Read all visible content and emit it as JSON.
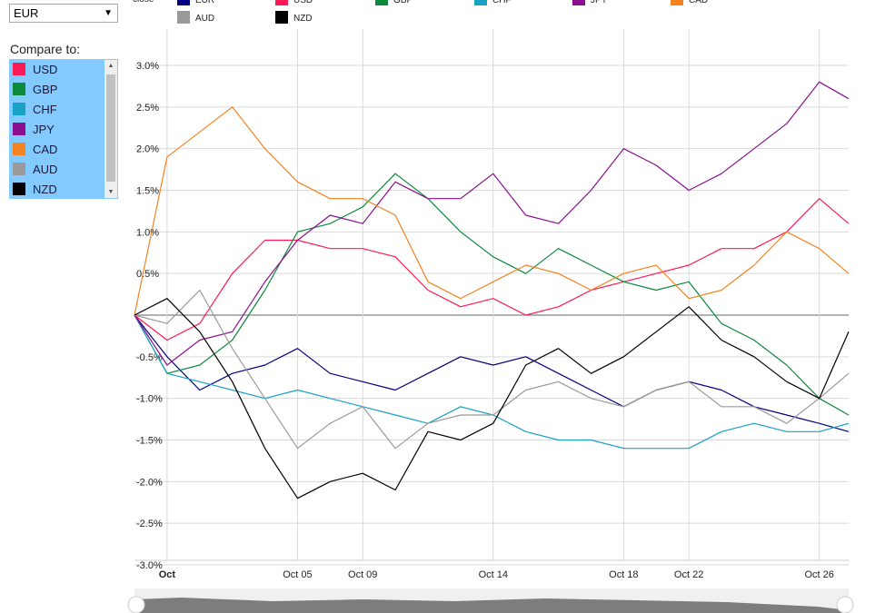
{
  "controls": {
    "base_currency": "EUR",
    "compare_label": "Compare to:",
    "compare_items": [
      {
        "label": "USD",
        "color": "#ff1a55"
      },
      {
        "label": "GBP",
        "color": "#0b8a3c"
      },
      {
        "label": "CHF",
        "color": "#17a2c4"
      },
      {
        "label": "JPY",
        "color": "#8b0f8f"
      },
      {
        "label": "CAD",
        "color": "#f58220"
      },
      {
        "label": "AUD",
        "color": "#999999"
      },
      {
        "label": "NZD",
        "color": "#000000"
      }
    ]
  },
  "chart_data": {
    "type": "line",
    "legend_label": "close",
    "legend": [
      {
        "name": "EUR",
        "color": "#000080"
      },
      {
        "name": "USD",
        "color": "#ff1a55"
      },
      {
        "name": "GBP",
        "color": "#0b8a3c"
      },
      {
        "name": "CHF",
        "color": "#17a2c4"
      },
      {
        "name": "JPY",
        "color": "#8b0f8f"
      },
      {
        "name": "CAD",
        "color": "#f58220"
      },
      {
        "name": "AUD",
        "color": "#999999"
      },
      {
        "name": "NZD",
        "color": "#000000"
      }
    ],
    "y_ticks": [
      "3.0%",
      "2.5%",
      "2.0%",
      "1.5%",
      "1.0%",
      "0.5%",
      "-0.5%",
      "-1.0%",
      "-1.5%",
      "-2.0%",
      "-2.5%",
      "-3.0%"
    ],
    "y_tick_values": [
      3.0,
      2.5,
      2.0,
      1.5,
      1.0,
      0.5,
      -0.5,
      -1.0,
      -1.5,
      -2.0,
      -2.5,
      -3.0
    ],
    "ylim": [
      -3.0,
      3.0
    ],
    "x_ticks": [
      "Oct",
      "Oct 05",
      "Oct 09",
      "Oct 14",
      "Oct 18",
      "Oct 22",
      "Oct 26"
    ],
    "x_tick_days": [
      1,
      5,
      7,
      11,
      15,
      17,
      21
    ],
    "xlim": [
      0,
      21.9
    ],
    "grid": true,
    "navigator_ticks": [
      "Oct",
      "Oct 05",
      "Oct 09",
      "Oct 14",
      "Oct 18",
      "Oct 22",
      "Oct 26"
    ],
    "series": [
      {
        "name": "EUR",
        "color": "#000080",
        "x": [
          0,
          1,
          2,
          3,
          4,
          5,
          6,
          7,
          8,
          9,
          10,
          11,
          12,
          13,
          14,
          15,
          16,
          17,
          18,
          19,
          20,
          21,
          21.9
        ],
        "y": [
          0.0,
          -0.5,
          -0.9,
          -0.7,
          -0.6,
          -0.4,
          -0.7,
          -0.8,
          -0.9,
          -0.7,
          -0.5,
          -0.6,
          -0.5,
          -0.7,
          -0.9,
          -1.1,
          -0.9,
          -0.8,
          -0.9,
          -1.1,
          -1.2,
          -1.3,
          -1.4
        ]
      },
      {
        "name": "USD",
        "color": "#ff1a55",
        "x": [
          0,
          1,
          2,
          3,
          4,
          5,
          6,
          7,
          8,
          9,
          10,
          11,
          12,
          13,
          14,
          15,
          16,
          17,
          18,
          19,
          20,
          21,
          21.9
        ],
        "y": [
          0.0,
          -0.3,
          -0.1,
          0.5,
          0.9,
          0.9,
          0.8,
          0.8,
          0.7,
          0.3,
          0.1,
          0.2,
          0.0,
          0.1,
          0.3,
          0.4,
          0.5,
          0.6,
          0.8,
          0.8,
          1.0,
          1.4,
          1.1
        ]
      },
      {
        "name": "GBP",
        "color": "#0b8a3c",
        "x": [
          0,
          1,
          2,
          3,
          4,
          5,
          6,
          7,
          8,
          9,
          10,
          11,
          12,
          13,
          14,
          15,
          16,
          17,
          18,
          19,
          20,
          21,
          21.9
        ],
        "y": [
          0.0,
          -0.7,
          -0.6,
          -0.3,
          0.3,
          1.0,
          1.1,
          1.3,
          1.7,
          1.4,
          1.0,
          0.7,
          0.5,
          0.8,
          0.6,
          0.4,
          0.3,
          0.4,
          -0.1,
          -0.3,
          -0.6,
          -1.0,
          -1.2
        ]
      },
      {
        "name": "CHF",
        "color": "#17a2c4",
        "x": [
          0,
          1,
          2,
          3,
          4,
          5,
          6,
          7,
          8,
          9,
          10,
          11,
          12,
          13,
          14,
          15,
          16,
          17,
          18,
          19,
          20,
          21,
          21.9
        ],
        "y": [
          0.0,
          -0.7,
          -0.8,
          -0.9,
          -1.0,
          -0.9,
          -1.0,
          -1.1,
          -1.2,
          -1.3,
          -1.1,
          -1.2,
          -1.4,
          -1.5,
          -1.5,
          -1.6,
          -1.6,
          -1.6,
          -1.4,
          -1.3,
          -1.4,
          -1.4,
          -1.3
        ]
      },
      {
        "name": "JPY",
        "color": "#8b0f8f",
        "x": [
          0,
          1,
          2,
          3,
          4,
          5,
          6,
          7,
          8,
          9,
          10,
          11,
          12,
          13,
          14,
          15,
          16,
          17,
          18,
          19,
          20,
          21,
          21.9
        ],
        "y": [
          0.0,
          -0.6,
          -0.3,
          -0.2,
          0.4,
          0.9,
          1.2,
          1.1,
          1.6,
          1.4,
          1.4,
          1.7,
          1.2,
          1.1,
          1.5,
          2.0,
          1.8,
          1.5,
          1.7,
          2.0,
          2.3,
          2.8,
          2.6
        ]
      },
      {
        "name": "CAD",
        "color": "#f58220",
        "x": [
          0,
          1,
          2,
          3,
          4,
          5,
          6,
          7,
          8,
          9,
          10,
          11,
          12,
          13,
          14,
          15,
          16,
          17,
          18,
          19,
          20,
          21,
          21.9
        ],
        "y": [
          0.0,
          1.9,
          2.2,
          2.5,
          2.0,
          1.6,
          1.4,
          1.4,
          1.2,
          0.4,
          0.2,
          0.4,
          0.6,
          0.5,
          0.3,
          0.5,
          0.6,
          0.2,
          0.3,
          0.6,
          1.0,
          0.8,
          0.5
        ]
      },
      {
        "name": "AUD",
        "color": "#999999",
        "x": [
          0,
          1,
          2,
          3,
          4,
          5,
          6,
          7,
          8,
          9,
          10,
          11,
          12,
          13,
          14,
          15,
          16,
          17,
          18,
          19,
          20,
          21,
          21.9
        ],
        "y": [
          0.0,
          -0.1,
          0.3,
          -0.4,
          -1.0,
          -1.6,
          -1.3,
          -1.1,
          -1.6,
          -1.3,
          -1.2,
          -1.2,
          -0.9,
          -0.8,
          -1.0,
          -1.1,
          -0.9,
          -0.8,
          -1.1,
          -1.1,
          -1.3,
          -1.0,
          -0.7
        ]
      },
      {
        "name": "NZD",
        "color": "#000000",
        "x": [
          0,
          1,
          2,
          3,
          4,
          5,
          6,
          7,
          8,
          9,
          10,
          11,
          12,
          13,
          14,
          15,
          16,
          17,
          18,
          19,
          20,
          21,
          21.9
        ],
        "y": [
          0.0,
          0.2,
          -0.2,
          -0.8,
          -1.6,
          -2.2,
          -2.0,
          -1.9,
          -2.1,
          -1.4,
          -1.5,
          -1.3,
          -0.6,
          -0.4,
          -0.7,
          -0.5,
          -0.2,
          0.1,
          -0.3,
          -0.5,
          -0.8,
          -1.0,
          -0.2
        ]
      }
    ]
  }
}
